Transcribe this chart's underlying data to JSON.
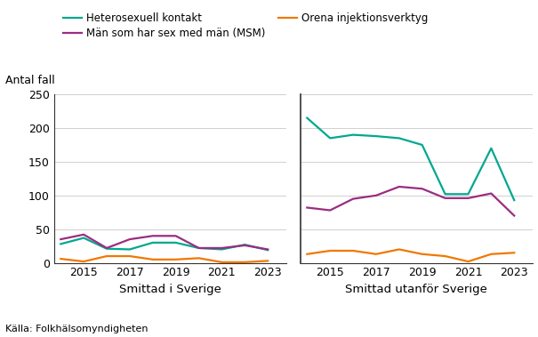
{
  "years_left": [
    2014,
    2015,
    2016,
    2017,
    2018,
    2019,
    2020,
    2021,
    2022,
    2023
  ],
  "years_right": [
    2014,
    2015,
    2016,
    2017,
    2018,
    2019,
    2020,
    2021,
    2022,
    2023
  ],
  "left_hetero": [
    28,
    37,
    21,
    20,
    30,
    30,
    22,
    20,
    27,
    19
  ],
  "left_msm": [
    35,
    42,
    22,
    35,
    40,
    40,
    22,
    22,
    26,
    20
  ],
  "left_inject": [
    6,
    2,
    10,
    10,
    5,
    5,
    7,
    1,
    1,
    3
  ],
  "right_hetero": [
    215,
    185,
    190,
    188,
    185,
    175,
    102,
    102,
    170,
    93
  ],
  "right_msm": [
    82,
    78,
    95,
    100,
    113,
    110,
    96,
    96,
    103,
    70
  ],
  "right_inject": [
    13,
    18,
    18,
    13,
    20,
    13,
    10,
    2,
    13,
    15
  ],
  "color_hetero": "#00A88F",
  "color_msm": "#9B2C82",
  "color_inject": "#F07800",
  "title_left": "Smittad i Sverige",
  "title_right": "Smittad utanför Sverige",
  "ylabel": "Antal fall",
  "ylim": [
    0,
    250
  ],
  "yticks": [
    0,
    50,
    100,
    150,
    200,
    250
  ],
  "legend_hetero": "Heterosexuell kontakt",
  "legend_msm": "Män som har sex med män (MSM)",
  "legend_inject": "Orena injektionsverktyg",
  "source": "Källa: Folkhälsomyndigheten",
  "xticks_left": [
    2015,
    2017,
    2019,
    2021,
    2023
  ],
  "xticks_right": [
    2015,
    2017,
    2019,
    2021,
    2023
  ],
  "xlim_left": [
    2013.7,
    2023.8
  ],
  "xlim_right": [
    2013.7,
    2023.8
  ]
}
